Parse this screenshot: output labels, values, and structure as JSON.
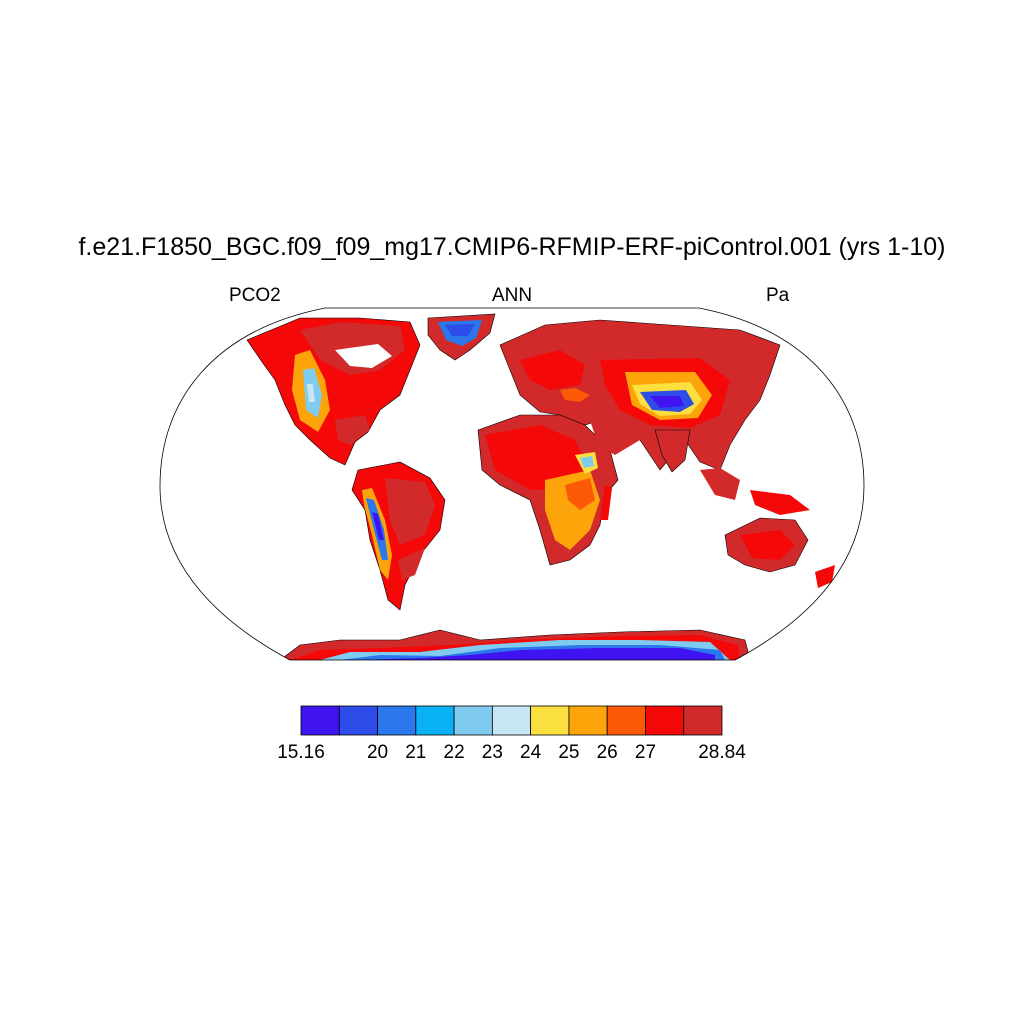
{
  "title": "f.e21.F1850_BGC.f09_f09_mg17.CMIP6-RFMIP-ERF-piControl.001 (yrs 1-10)",
  "subtitle": {
    "left": "PCO2",
    "center": "ANN",
    "right": "Pa"
  },
  "projection": "robinson",
  "colorbar": {
    "colors": [
      "#4014f0",
      "#2d4ce8",
      "#2a78ec",
      "#08b2f4",
      "#80ccf0",
      "#c6e6f4",
      "#fce040",
      "#fca40a",
      "#fc5a06",
      "#f40808",
      "#d22a2a"
    ],
    "labels": [
      "15.16",
      "20",
      "21",
      "22",
      "23",
      "24",
      "25",
      "26",
      "27",
      "28.84"
    ],
    "min": 15.16,
    "max": 28.84,
    "levels": [
      20,
      21,
      22,
      23,
      24,
      25,
      26,
      27,
      28
    ]
  },
  "chart_data": {
    "type": "heatmap",
    "variable": "PCO2",
    "season": "ANN",
    "units": "Pa",
    "range": [
      15.16,
      28.84
    ],
    "regions": [
      {
        "region": "Greenland interior",
        "value": 20
      },
      {
        "region": "Tibetan Plateau",
        "value": 16
      },
      {
        "region": "Antarctic plateau",
        "value": 15.5
      },
      {
        "region": "Andes",
        "value": 19
      },
      {
        "region": "Rocky Mountains",
        "value": 24
      },
      {
        "region": "Ethiopian Highlands",
        "value": 24.5
      },
      {
        "region": "Sahara",
        "value": 28
      },
      {
        "region": "Amazon",
        "value": 28.5
      },
      {
        "region": "Australia",
        "value": 28.4
      },
      {
        "region": "Siberia",
        "value": 28.5
      },
      {
        "region": "Europe",
        "value": 28.6
      }
    ]
  }
}
